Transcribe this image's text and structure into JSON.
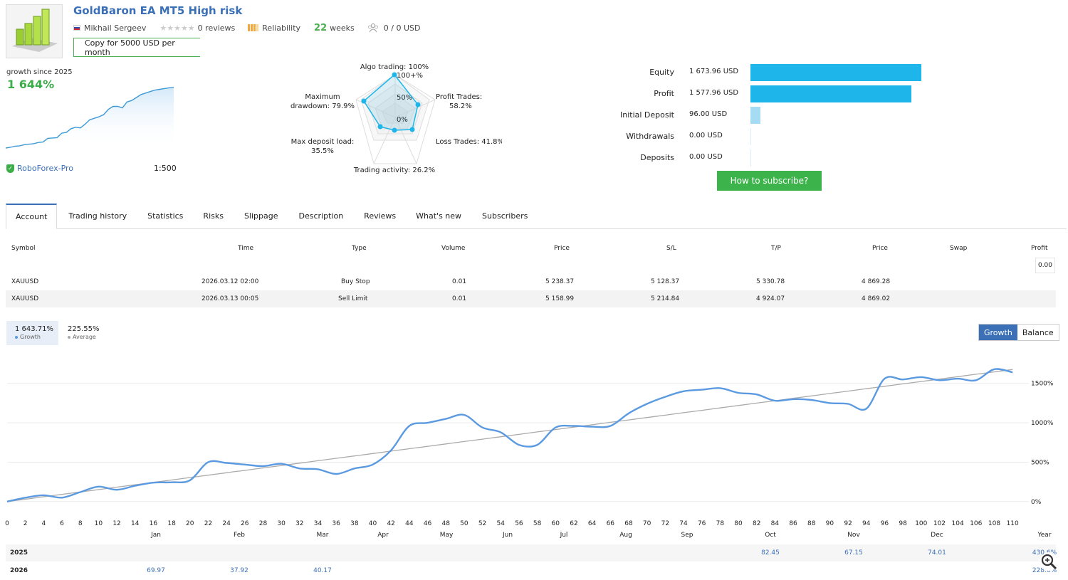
{
  "header": {
    "title": "GoldBaron EA MT5 High risk",
    "author": "Mikhail Sergeev",
    "reviews": "0 reviews",
    "reliability": "Reliability",
    "weeks_num": "22",
    "weeks_label": "weeks",
    "subscribers": "0 / 0 USD",
    "copy_button": "Copy for 5000 USD per month"
  },
  "growth_summary": {
    "label": "growth since 2025",
    "value": "1 644%",
    "broker": "RoboForex-Pro",
    "leverage": "1:500"
  },
  "radar": {
    "algo_trading": "Algo trading: 100%",
    "profit_trades": [
      "Profit Trades:",
      "58.2%"
    ],
    "loss_trades": "Loss Trades: 41.8%",
    "trading_activity": "Trading activity: 26.2%",
    "max_deposit_load": [
      "Max deposit load:",
      "35.5%"
    ],
    "max_drawdown": [
      "Maximum",
      "drawdown: 79.9%"
    ],
    "rings": [
      "100+%",
      "50%",
      "0%"
    ]
  },
  "equity": {
    "rows": [
      {
        "label": "Equity",
        "value": "1 673.96 USD",
        "amount": 1673.96
      },
      {
        "label": "Profit",
        "value": "1 577.96 USD",
        "amount": 1577.96
      },
      {
        "label": "Initial Deposit",
        "value": "96.00 USD",
        "amount": 96.0
      },
      {
        "label": "Withdrawals",
        "value": "0.00 USD",
        "amount": 0
      },
      {
        "label": "Deposits",
        "value": "0.00 USD",
        "amount": 0
      }
    ],
    "subscribe_button": "How to subscribe?",
    "colors": {
      "main": "#1eb6ea",
      "light": "#a5dcf4"
    }
  },
  "tabs": [
    "Account",
    "Trading history",
    "Statistics",
    "Risks",
    "Slippage",
    "Description",
    "Reviews",
    "What's new",
    "Subscribers"
  ],
  "orders": {
    "columns": [
      "Symbol",
      "Time",
      "Type",
      "Volume",
      "Price",
      "S/L",
      "T/P",
      "Price",
      "Swap",
      "Profit"
    ],
    "profit_total": "0.00",
    "rows": [
      [
        "XAUUSD",
        "2026.03.12 02:00",
        "Buy Stop",
        "0.01",
        "5 238.37",
        "5 128.37",
        "5 330.78",
        "4 869.28"
      ],
      [
        "XAUUSD",
        "2026.03.13 00:05",
        "Sell Limit",
        "0.01",
        "5 158.99",
        "5 214.84",
        "4 924.07",
        "4 869.02"
      ]
    ]
  },
  "growth_chart": {
    "legend_growth_value": "1 643.71%",
    "legend_growth_label": "Growth",
    "legend_avg_value": "225.55%",
    "legend_avg_label": "Average",
    "toggle": [
      "Growth",
      "Balance"
    ],
    "colors": {
      "growth": "#5b9ae0",
      "average": "#aaaaaa"
    }
  },
  "chart_data": [
    {
      "type": "line",
      "x": [
        0,
        2,
        4,
        6,
        8,
        10,
        12,
        14,
        16,
        18,
        20,
        22,
        24,
        26,
        28,
        30,
        32,
        34,
        36,
        38,
        40,
        42,
        44,
        46,
        48,
        50,
        52,
        54,
        56,
        58,
        60,
        62,
        64,
        66,
        68,
        70,
        72,
        74,
        76,
        78,
        80,
        82,
        84,
        86,
        88,
        90,
        92,
        94,
        96,
        98,
        100,
        102,
        104,
        106,
        108,
        110
      ],
      "series": [
        {
          "name": "Growth",
          "values": [
            0,
            50,
            80,
            50,
            120,
            190,
            150,
            200,
            240,
            245,
            270,
            500,
            490,
            470,
            450,
            480,
            420,
            410,
            350,
            420,
            470,
            650,
            960,
            1000,
            1050,
            1100,
            940,
            880,
            720,
            720,
            940,
            960,
            950,
            960,
            1120,
            1240,
            1330,
            1400,
            1420,
            1440,
            1380,
            1360,
            1280,
            1300,
            1290,
            1250,
            1240,
            1180,
            1560,
            1550,
            1580,
            1540,
            1560,
            1540,
            1680,
            1640
          ]
        },
        {
          "name": "Average",
          "values": [
            0,
            30,
            61,
            91,
            122,
            152,
            183,
            213,
            244,
            274,
            305,
            335,
            366,
            396,
            427,
            457,
            488,
            518,
            549,
            579,
            610,
            640,
            671,
            701,
            732,
            762,
            792,
            823,
            853,
            884,
            914,
            945,
            975,
            1006,
            1036,
            1067,
            1097,
            1128,
            1158,
            1189,
            1219,
            1250,
            1280,
            1311,
            1341,
            1372,
            1402,
            1433,
            1463,
            1494,
            1524,
            1555,
            1585,
            1616,
            1646,
            1677
          ]
        }
      ],
      "x_ticks": [
        0,
        2,
        4,
        6,
        8,
        10,
        12,
        14,
        16,
        18,
        20,
        22,
        24,
        26,
        28,
        30,
        32,
        34,
        36,
        38,
        40,
        42,
        44,
        46,
        48,
        50,
        52,
        54,
        56,
        58,
        60,
        62,
        64,
        66,
        68,
        70,
        72,
        74,
        76,
        78,
        80,
        82,
        84,
        86,
        88,
        90,
        92,
        94,
        96,
        98,
        100,
        102,
        104,
        106,
        108,
        110
      ],
      "y_ticks": [
        "0%",
        "500%",
        "1000%",
        "1500%"
      ],
      "y_tick_values": [
        0,
        500,
        1000,
        1500
      ],
      "ylim": [
        -20,
        1850
      ],
      "xlim": [
        0,
        111
      ],
      "grid": true
    },
    {
      "type": "line",
      "series": [
        {
          "values": [
            0,
            10,
            25,
            30,
            45,
            52,
            58,
            75,
            80,
            130,
            135,
            140,
            200,
            210,
            260,
            280,
            270,
            320,
            380,
            400,
            420,
            450,
            520,
            560,
            560,
            540,
            620,
            640,
            680,
            720,
            740,
            760,
            780,
            790,
            800,
            810,
            815
          ]
        }
      ],
      "ylim": [
        0,
        900
      ]
    }
  ],
  "monthly": {
    "months": [
      "Jan",
      "Feb",
      "Mar",
      "Apr",
      "May",
      "Jun",
      "Jul",
      "Aug",
      "Sep",
      "Oct",
      "Nov",
      "Dec",
      "Year"
    ],
    "rows": [
      {
        "year": "2025",
        "values": [
          "",
          "",
          "",
          "",
          "",
          "",
          "",
          "",
          "",
          "82.45",
          "67.15",
          "74.01",
          "430.6%"
        ]
      },
      {
        "year": "2026",
        "values": [
          "69.97",
          "37.92",
          "40.17",
          "",
          "",
          "",
          "",
          "",
          "",
          "",
          "",
          "",
          "228.6%"
        ]
      }
    ]
  }
}
